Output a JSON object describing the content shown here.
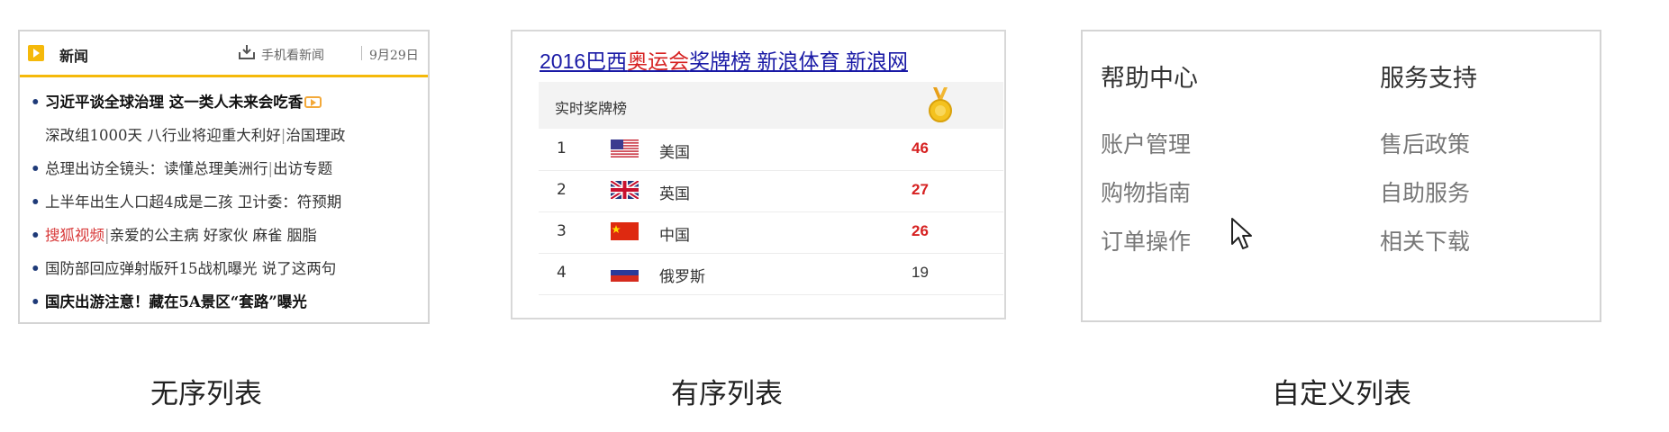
{
  "news": {
    "title": "新闻",
    "mobile_label": "手机看新闻",
    "date": "9月29日",
    "rows": [
      {
        "bullet": true,
        "bold": true,
        "parts": [
          {
            "text": "习近平谈全球治理 这一类人未来会吃香",
            "style": ""
          }
        ],
        "video": true
      },
      {
        "bullet": false,
        "bold": false,
        "parts": [
          {
            "text": "深改组1000天 八行业将迎重大利好",
            "style": ""
          },
          {
            "text": "|",
            "style": "sep"
          },
          {
            "text": "治国理政",
            "style": ""
          }
        ],
        "video": false
      },
      {
        "bullet": true,
        "bold": false,
        "parts": [
          {
            "text": "总理出访全镜头：读懂总理美洲行",
            "style": ""
          },
          {
            "text": "|",
            "style": "sep"
          },
          {
            "text": "出访专题",
            "style": ""
          }
        ],
        "video": false
      },
      {
        "bullet": true,
        "bold": false,
        "parts": [
          {
            "text": "上半年出生人口超4成是二孩 卫计委：符预期",
            "style": ""
          }
        ],
        "video": false
      },
      {
        "bullet": true,
        "bold": false,
        "parts": [
          {
            "text": "搜狐视频",
            "style": "red"
          },
          {
            "text": "|",
            "style": "sep"
          },
          {
            "text": "亲爱的公主病 好家伙 麻雀 胭脂",
            "style": ""
          }
        ],
        "video": false
      },
      {
        "bullet": true,
        "bold": false,
        "parts": [
          {
            "text": "国防部回应弹射版歼15战机曝光 说了这两句",
            "style": ""
          }
        ],
        "video": false
      },
      {
        "bullet": true,
        "bold": true,
        "parts": [
          {
            "text": "国庆出游注意！藏在5A景区“套路”曝光",
            "style": ""
          }
        ],
        "video": false
      }
    ]
  },
  "medals": {
    "header_a": "2016巴西",
    "header_b": "奥运会",
    "header_c": "奖牌榜 新浪体育 新浪网",
    "sub_label": "实时奖牌榜",
    "rows": [
      {
        "rank": "1",
        "country": "美国",
        "flag": "us",
        "count": "46",
        "highlight": true
      },
      {
        "rank": "2",
        "country": "英国",
        "flag": "uk",
        "count": "27",
        "highlight": true
      },
      {
        "rank": "3",
        "country": "中国",
        "flag": "cn",
        "count": "26",
        "highlight": true
      },
      {
        "rank": "4",
        "country": "俄罗斯",
        "flag": "ru",
        "count": "19",
        "highlight": false
      }
    ],
    "colors": {
      "link": "#1a1aa6",
      "accent": "#d62020"
    }
  },
  "help": {
    "columns": [
      {
        "title": "帮助中心",
        "items": [
          "账户管理",
          "购物指南",
          "订单操作"
        ]
      },
      {
        "title": "服务支持",
        "items": [
          "售后政策",
          "自助服务",
          "相关下载"
        ]
      }
    ]
  },
  "captions": {
    "unordered": "无序列表",
    "ordered": "有序列表",
    "definition": "自定义列表"
  }
}
